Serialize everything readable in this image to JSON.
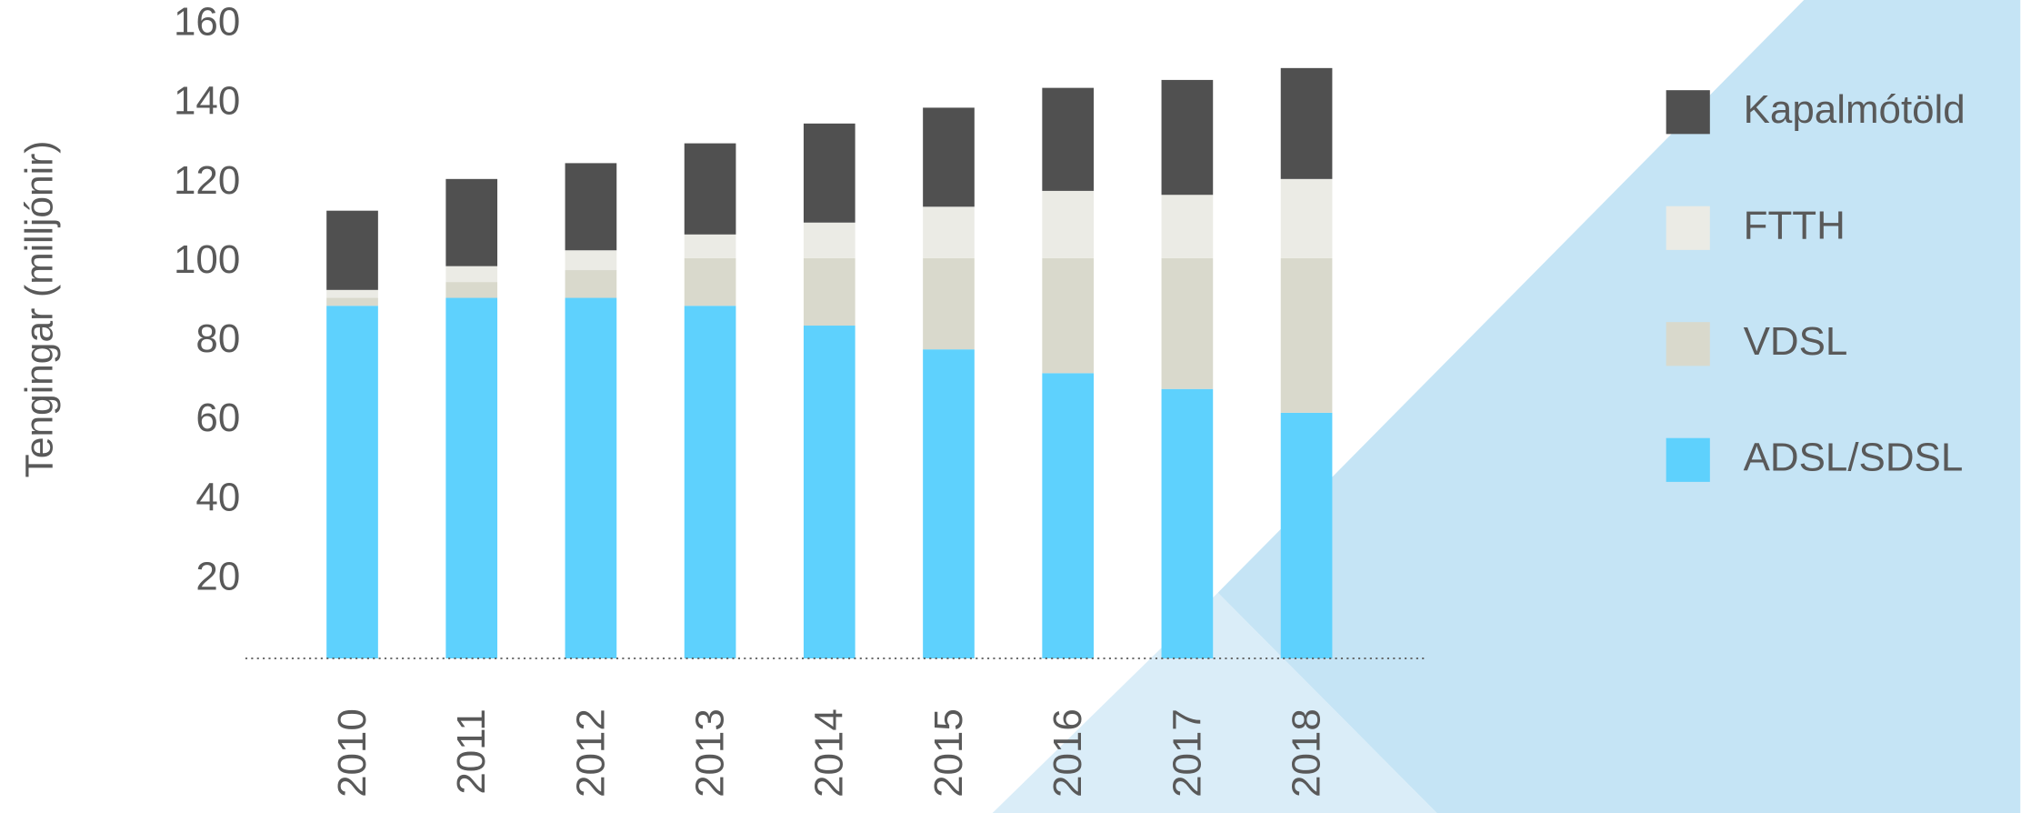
{
  "chart_data": {
    "type": "stacked-bar",
    "y_axis_label": "Tengingar (milljónir)",
    "categories": [
      "2010",
      "2011",
      "2012",
      "2013",
      "2014",
      "2015",
      "2016",
      "2017",
      "2018"
    ],
    "series": [
      {
        "name": "ADSL/SDSL",
        "color": "#5ed1fd",
        "values": [
          89,
          91,
          91,
          89,
          84,
          78,
          72,
          68,
          62
        ]
      },
      {
        "name": "VDSL",
        "color": "#d9d9cc",
        "values": [
          2,
          4,
          7,
          12,
          17,
          23,
          29,
          33,
          39
        ]
      },
      {
        "name": "FTTH",
        "color": "#ebebe5",
        "values": [
          2,
          4,
          5,
          6,
          9,
          13,
          17,
          16,
          20
        ]
      },
      {
        "name": "Kapalmótöld",
        "color": "#505050",
        "values": [
          20,
          22,
          22,
          23,
          25,
          25,
          26,
          29,
          28
        ]
      }
    ],
    "ylim": [
      0,
      160
    ],
    "yticks": [
      20,
      40,
      60,
      80,
      100,
      120,
      140,
      160
    ],
    "grid": false,
    "legend": "right"
  }
}
